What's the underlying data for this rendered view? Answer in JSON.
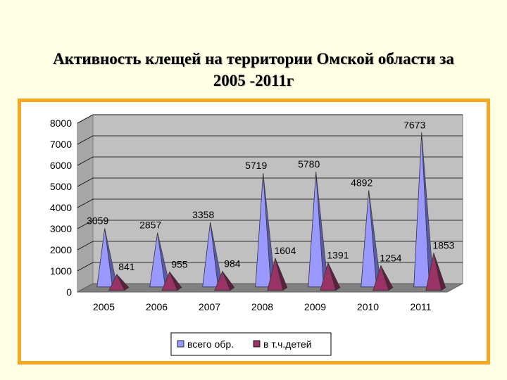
{
  "slide": {
    "title_line1": "Активность клещей на территории Омской области за",
    "title_line2": "2005 -2011г"
  },
  "colors": {
    "background": "#ffffe5",
    "frame_border": "#f5a623",
    "plot_wall": "#c0c0c0",
    "floor": "#808080",
    "series_total": "#9999ff",
    "series_children": "#993366"
  },
  "chart_data": {
    "type": "bar",
    "style": "3d-cone",
    "title": "",
    "xlabel": "",
    "ylabel": "",
    "categories": [
      "2005",
      "2006",
      "2007",
      "2008",
      "2009",
      "2010",
      "2011"
    ],
    "series": [
      {
        "name": "всего обр.",
        "values": [
          3059,
          2857,
          3358,
          5719,
          5780,
          4892,
          7673
        ]
      },
      {
        "name": "в т.ч.детей",
        "values": [
          841,
          955,
          984,
          1604,
          1391,
          1254,
          1853
        ]
      }
    ],
    "data_labels": {
      "total": [
        "3059",
        "2857",
        "3358",
        "5719",
        "5780",
        "4892",
        "7673"
      ],
      "children": [
        "841",
        "955",
        "984",
        "1604",
        "1391",
        "1254",
        "1853"
      ]
    },
    "yticks": [
      "0",
      "1000",
      "2000",
      "3000",
      "4000",
      "5000",
      "6000",
      "7000",
      "8000"
    ],
    "ylim": [
      0,
      8000
    ],
    "grid": true,
    "legend_position": "bottom"
  }
}
